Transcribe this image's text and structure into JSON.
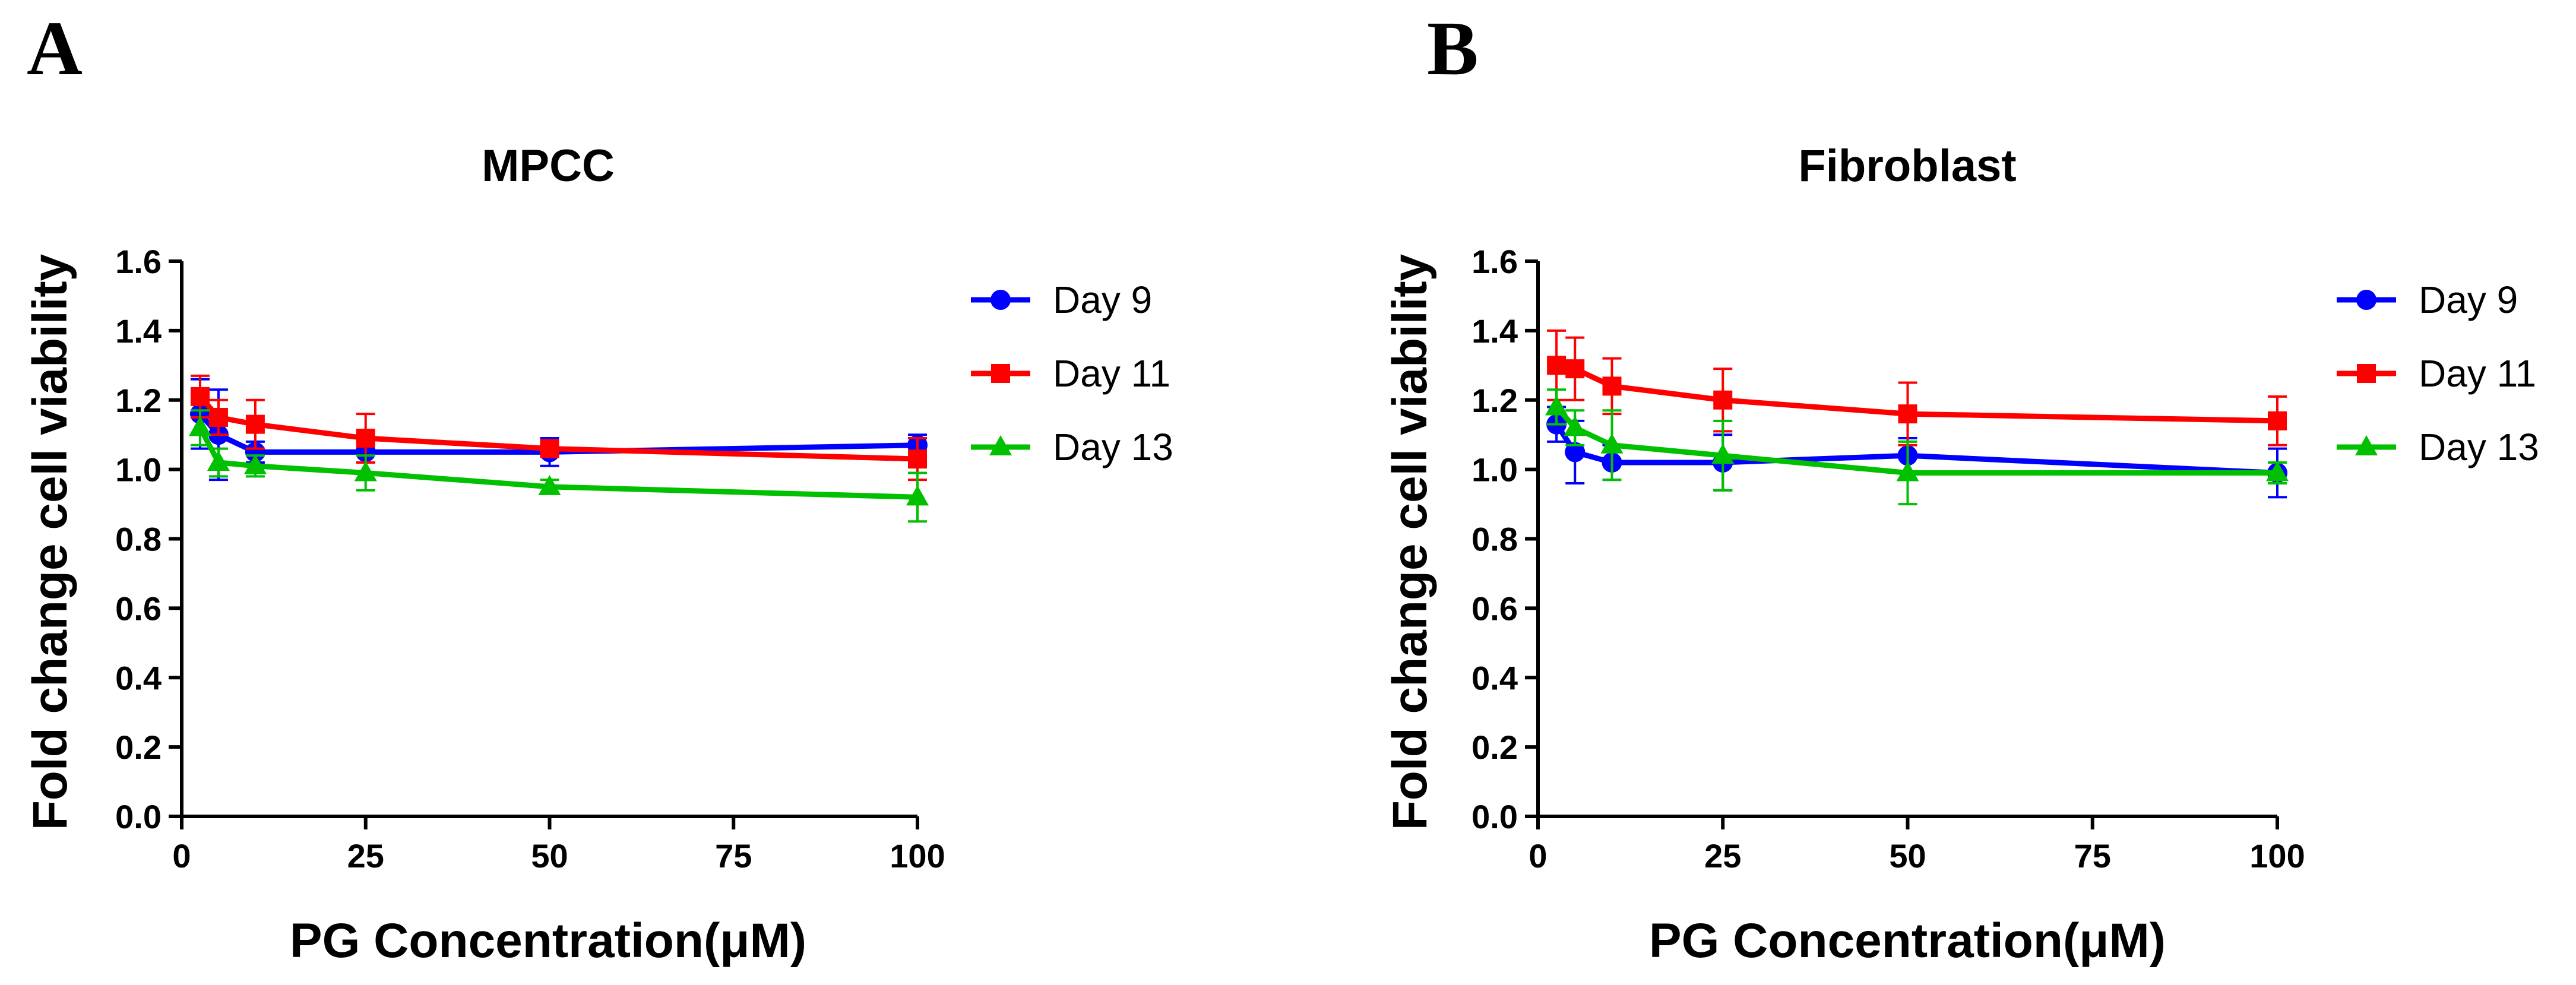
{
  "chart_data": [
    {
      "type": "line",
      "panel_label": "A",
      "title": "MPCC",
      "xlabel": "PG Concentration(μM)",
      "ylabel": "Fold change cell viability",
      "xlim": [
        0,
        100
      ],
      "ylim": [
        0,
        1.6
      ],
      "xticks": [
        "0",
        "25",
        "50",
        "75",
        "100"
      ],
      "yticks": [
        "0.0",
        "0.2",
        "0.4",
        "0.6",
        "0.8",
        "1.0",
        "1.2",
        "1.4",
        "1.6"
      ],
      "x": [
        2.5,
        5,
        10,
        25,
        50,
        100
      ],
      "legend_position": "right",
      "series": [
        {
          "name": "Day 9",
          "color": "#0000ff",
          "marker": "circle",
          "values": [
            1.16,
            1.1,
            1.05,
            1.05,
            1.05,
            1.07
          ],
          "errors": [
            0.1,
            0.13,
            0.03,
            0.03,
            0.04,
            0.03
          ]
        },
        {
          "name": "Day 11",
          "color": "#ff0000",
          "marker": "square",
          "values": [
            1.21,
            1.15,
            1.13,
            1.09,
            1.06,
            1.03
          ],
          "errors": [
            0.06,
            0.05,
            0.07,
            0.07,
            0.02,
            0.06
          ]
        },
        {
          "name": "Day 13",
          "color": "#00c000",
          "marker": "triangle",
          "values": [
            1.12,
            1.02,
            1.01,
            0.99,
            0.95,
            0.92
          ],
          "errors": [
            0.05,
            0.04,
            0.03,
            0.05,
            0.02,
            0.07
          ]
        }
      ]
    },
    {
      "type": "line",
      "panel_label": "B",
      "title": "Fibroblast",
      "xlabel": "PG Concentration(μM)",
      "ylabel": "Fold change cell viability",
      "xlim": [
        0,
        100
      ],
      "ylim": [
        0,
        1.6
      ],
      "xticks": [
        "0",
        "25",
        "50",
        "75",
        "100"
      ],
      "yticks": [
        "0.0",
        "0.2",
        "0.4",
        "0.6",
        "0.8",
        "1.0",
        "1.2",
        "1.4",
        "1.6"
      ],
      "x": [
        2.5,
        5,
        10,
        25,
        50,
        100
      ],
      "legend_position": "right",
      "series": [
        {
          "name": "Day 9",
          "color": "#0000ff",
          "marker": "circle",
          "values": [
            1.13,
            1.05,
            1.02,
            1.02,
            1.04,
            0.99
          ],
          "errors": [
            0.05,
            0.09,
            0.05,
            0.08,
            0.05,
            0.07
          ]
        },
        {
          "name": "Day 11",
          "color": "#ff0000",
          "marker": "square",
          "values": [
            1.3,
            1.29,
            1.24,
            1.2,
            1.16,
            1.14
          ],
          "errors": [
            0.1,
            0.09,
            0.08,
            0.09,
            0.09,
            0.07
          ]
        },
        {
          "name": "Day 13",
          "color": "#00c000",
          "marker": "triangle",
          "values": [
            1.18,
            1.12,
            1.07,
            1.04,
            0.99,
            0.99
          ],
          "errors": [
            0.05,
            0.05,
            0.1,
            0.1,
            0.09,
            0.03
          ]
        }
      ]
    }
  ]
}
